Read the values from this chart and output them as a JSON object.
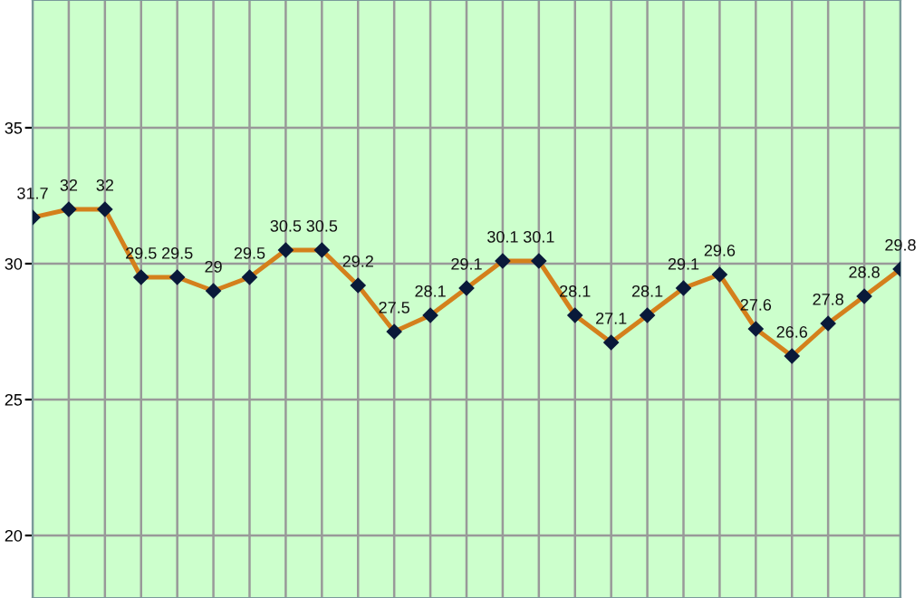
{
  "chart_data": {
    "type": "line",
    "categories": [
      null,
      null,
      null,
      null,
      null,
      null,
      null,
      null,
      null,
      null,
      null,
      null,
      null,
      null,
      null,
      null,
      null,
      null,
      null,
      null,
      null,
      null,
      null,
      null,
      null
    ],
    "series": [
      {
        "color": "#d4801c",
        "values": [
          31.7,
          32,
          32,
          29.5,
          29.5,
          29,
          29.5,
          30.5,
          30.5,
          29.2,
          27.5,
          28.1,
          29.1,
          30.1,
          30.1,
          28.1,
          27.1,
          28.1,
          29.1,
          29.6,
          27.6,
          26.6,
          27.8,
          28.8,
          29.8
        ]
      }
    ],
    "ylim": [
      17.7,
      39.7
    ],
    "yticks": [
      20,
      25,
      30,
      35
    ],
    "grid": true,
    "marker": "diamond",
    "line_style": "solid",
    "data_labels": true,
    "legend": false
  }
}
